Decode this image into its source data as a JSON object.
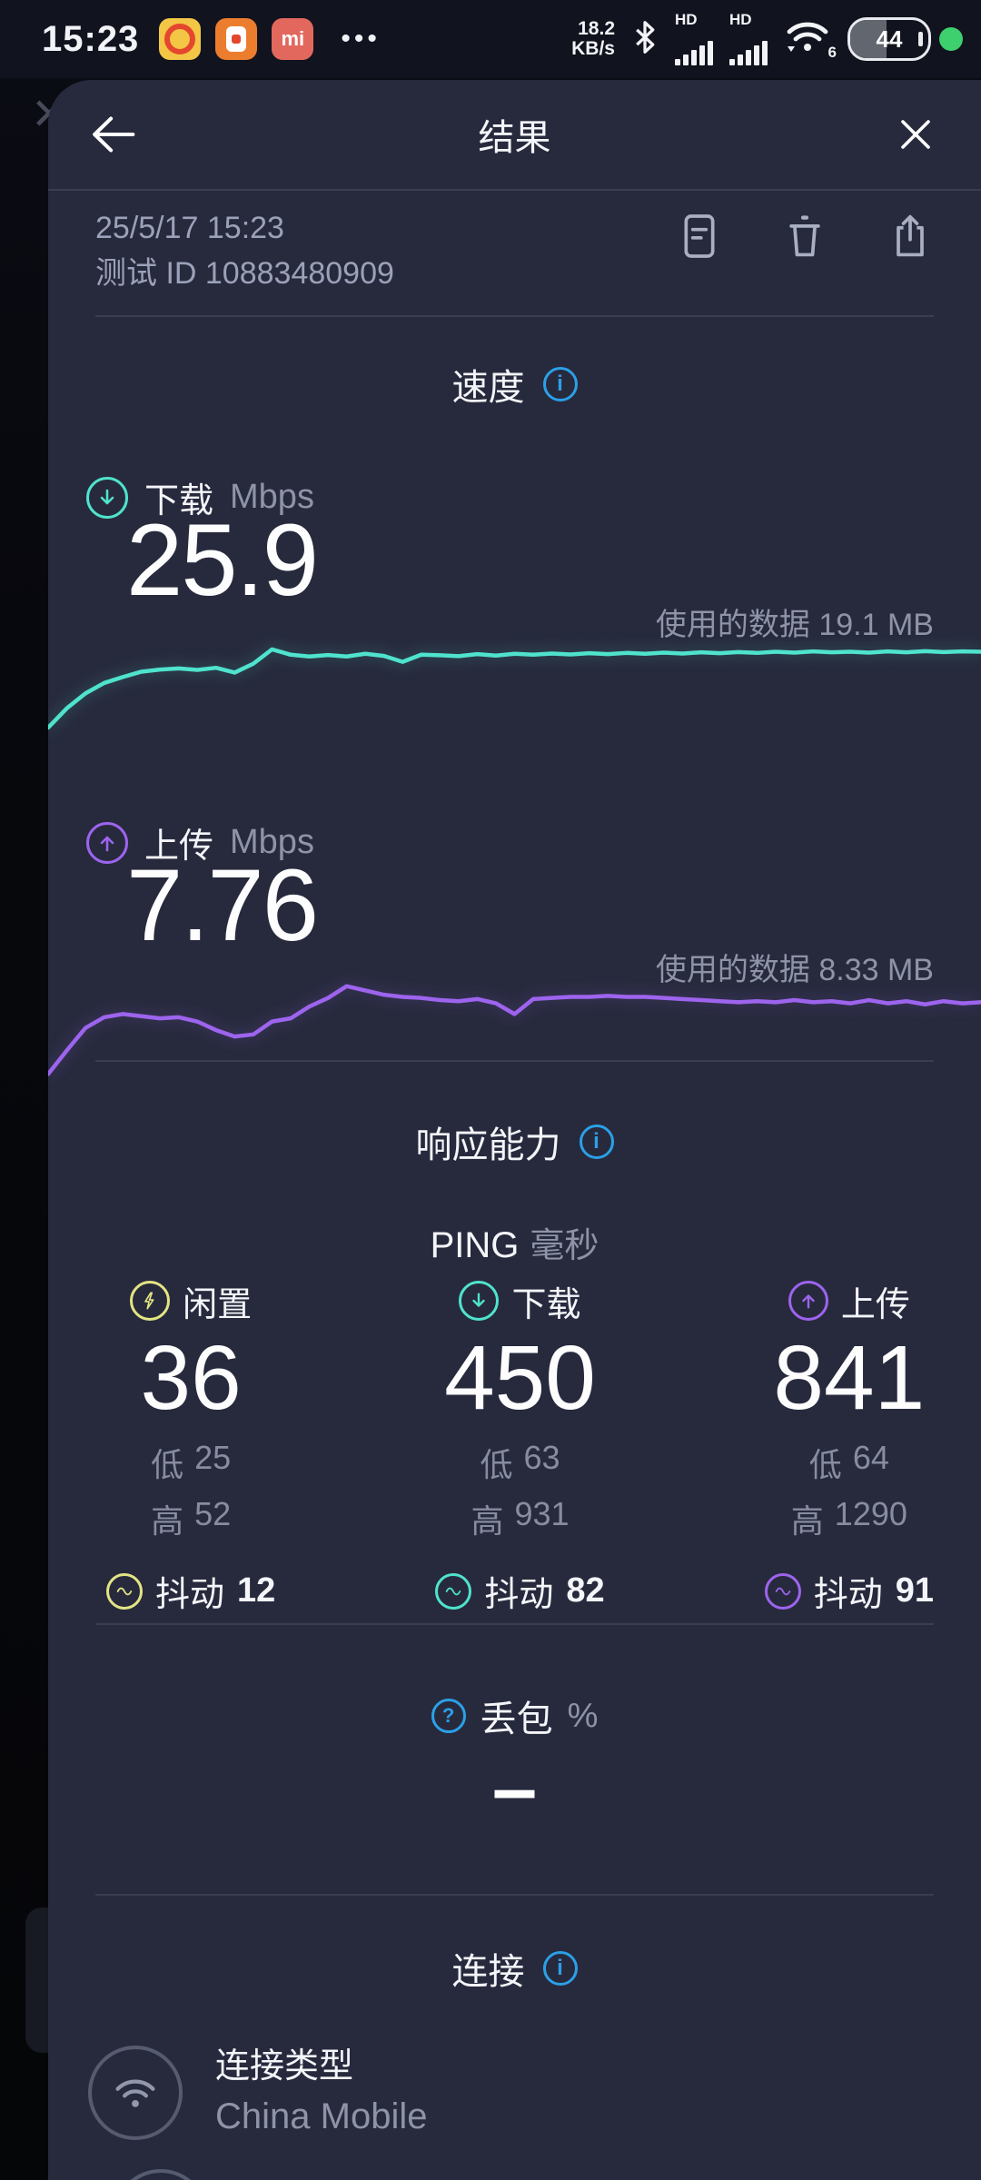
{
  "colors": {
    "download": "#4fe3cd",
    "upload": "#9d64ee",
    "idle": "#e3e583",
    "info": "#2ba0e8",
    "indicator_dot": "#3ecf6e"
  },
  "status_bar": {
    "time": "15:23",
    "more_icon": "•••",
    "net_speed_value": "18.2",
    "net_speed_unit": "KB/s",
    "sim1_hd": "HD",
    "sim2_hd": "HD",
    "wifi_gen": "6",
    "battery_percent": "44",
    "app_icon_3_glyph": "mi"
  },
  "header": {
    "title": "结果"
  },
  "test_info": {
    "datetime": "25/5/17 15:23",
    "test_id": "测试 ID 10883480909"
  },
  "speed": {
    "title": "速度",
    "download": {
      "label": "下载",
      "unit": "Mbps",
      "value": "25.9",
      "data_used": "使用的数据 19.1 MB"
    },
    "upload": {
      "label": "上传",
      "unit": "Mbps",
      "value": "7.76",
      "data_used": "使用的数据 8.33 MB"
    }
  },
  "responsiveness": {
    "title": "响应能力",
    "ping_label": "PING",
    "ping_unit": "毫秒",
    "columns": [
      {
        "label": "闲置",
        "value": "36",
        "low_label": "低",
        "low": "25",
        "high_label": "高",
        "high": "52",
        "jitter_label": "抖动",
        "jitter": "12"
      },
      {
        "label": "下载",
        "value": "450",
        "low_label": "低",
        "low": "63",
        "high_label": "高",
        "high": "931",
        "jitter_label": "抖动",
        "jitter": "82"
      },
      {
        "label": "上传",
        "value": "841",
        "low_label": "低",
        "low": "64",
        "high_label": "高",
        "high": "1290",
        "jitter_label": "抖动",
        "jitter": "91"
      }
    ],
    "packet_loss": {
      "label": "丢包",
      "unit": "%",
      "value": "—"
    }
  },
  "connection": {
    "title": "连接",
    "type_label": "连接类型",
    "provider": "China Mobile"
  },
  "chart_data": [
    {
      "type": "line",
      "name": "download",
      "title": "下载速度曲线",
      "ylabel": "Mbps",
      "ylim": [
        0,
        36
      ],
      "color": "#4fe3cd",
      "final_value": 25.9,
      "values": [
        1.5,
        8,
        13,
        16.5,
        18.5,
        20.3,
        21.0,
        21.4,
        20.9,
        21.6,
        20.0,
        23.0,
        27.8,
        26.0,
        25.4,
        25.9,
        25.4,
        26.3,
        25.6,
        23.6,
        26.0,
        25.8,
        25.5,
        26.2,
        25.7,
        26.3,
        26.0,
        26.4,
        26.1,
        26.5,
        26.2,
        26.6,
        26.3,
        26.7,
        26.4,
        26.8,
        26.5,
        26.9,
        26.6,
        27.0,
        26.7,
        27.1,
        26.8,
        27.0,
        26.7,
        27.1,
        26.8,
        27.2,
        26.9,
        27.1,
        27.0
      ]
    },
    {
      "type": "line",
      "name": "upload",
      "title": "上传速度曲线",
      "ylabel": "Mbps",
      "ylim": [
        0,
        10
      ],
      "color": "#9d64ee",
      "final_value": 7.76,
      "values": [
        0.3,
        2.5,
        4.6,
        5.6,
        5.9,
        5.7,
        5.5,
        5.6,
        5.2,
        4.4,
        3.8,
        4.0,
        5.2,
        5.5,
        6.6,
        7.4,
        8.5,
        8.1,
        7.7,
        7.5,
        7.4,
        7.2,
        7.1,
        7.3,
        6.9,
        5.9,
        7.3,
        7.4,
        7.5,
        7.5,
        7.6,
        7.5,
        7.5,
        7.4,
        7.3,
        7.2,
        7.1,
        7.0,
        7.1,
        7.0,
        7.2,
        7.0,
        7.1,
        6.9,
        7.2,
        6.9,
        7.1,
        6.8,
        7.1,
        6.9,
        7.0
      ]
    }
  ]
}
